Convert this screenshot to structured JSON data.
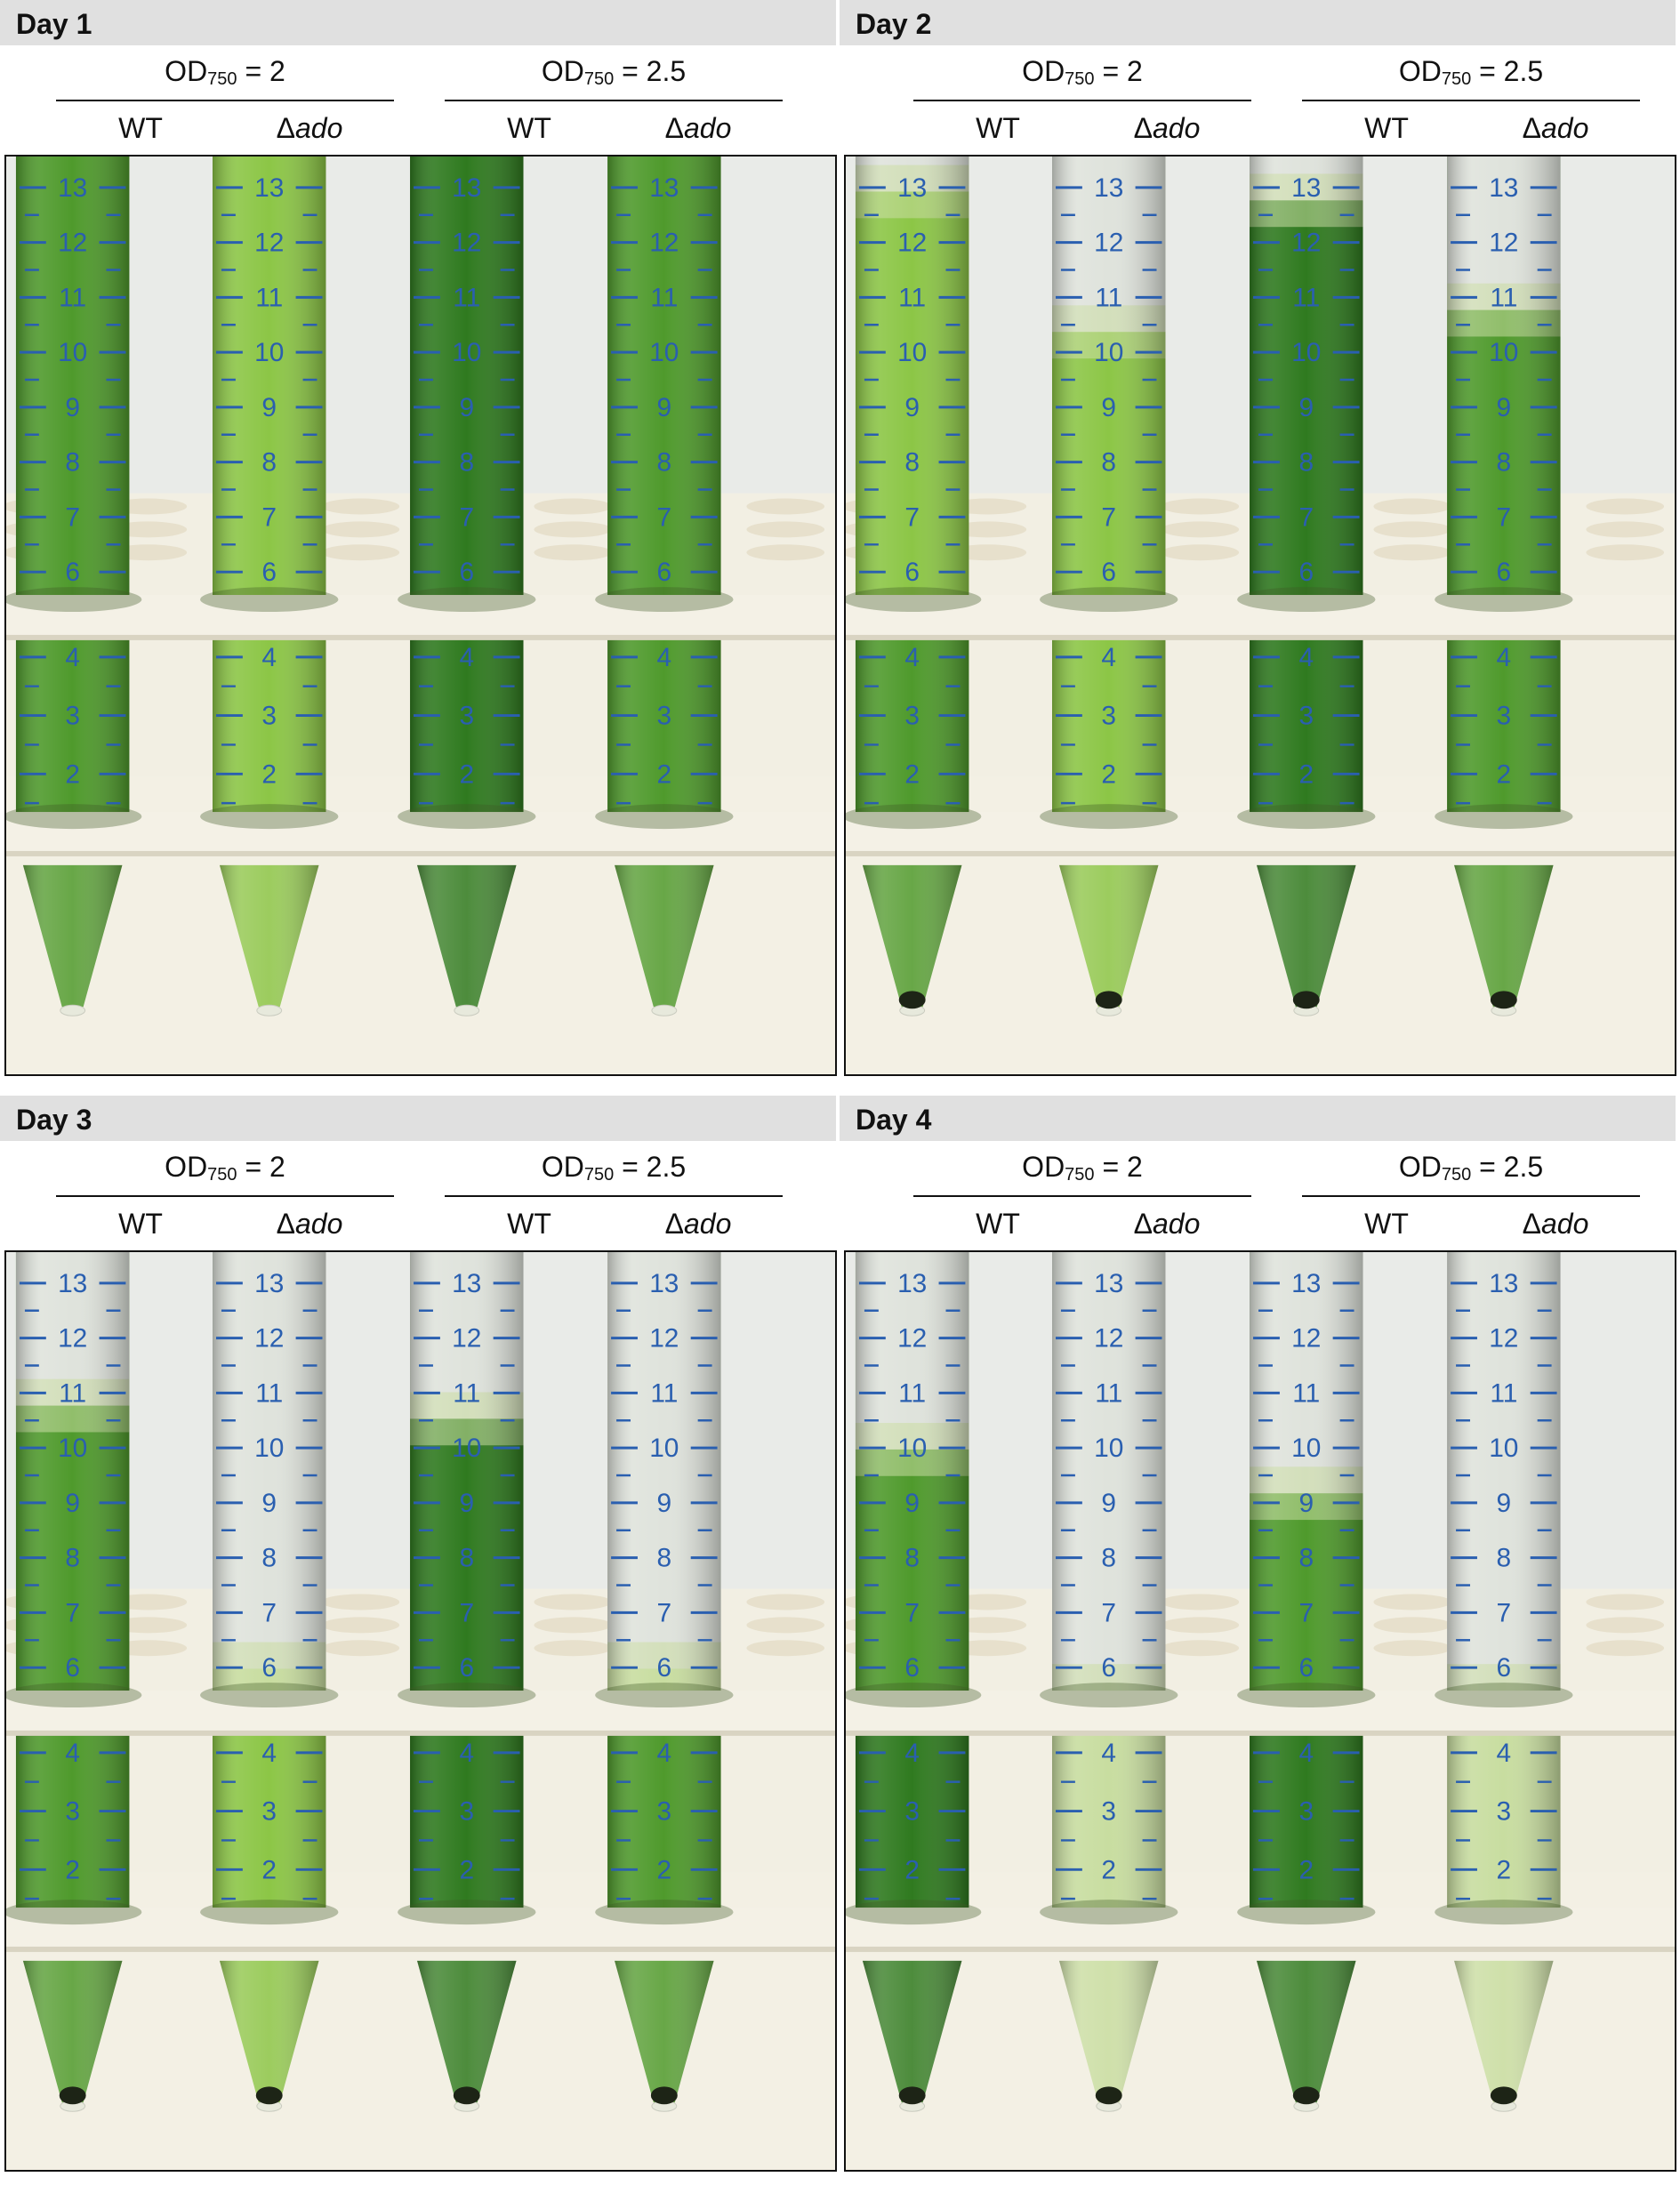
{
  "panels": [
    {
      "day": "Day 1",
      "groups": [
        {
          "od_base": "OD",
          "od_sub": "750",
          "od_value": " = 2",
          "cond_wt": "WT",
          "cond_delta": "Δ",
          "cond_mut": "ado"
        },
        {
          "od_base": "OD",
          "od_sub": "750",
          "od_value": " = 2.5",
          "cond_wt": "WT",
          "cond_delta": "Δ",
          "cond_mut": "ado"
        }
      ]
    },
    {
      "day": "Day 2",
      "groups": [
        {
          "od_base": "OD",
          "od_sub": "750",
          "od_value": " = 2",
          "cond_wt": "WT",
          "cond_delta": "Δ",
          "cond_mut": "ado"
        },
        {
          "od_base": "OD",
          "od_sub": "750",
          "od_value": " = 2.5",
          "cond_wt": "WT",
          "cond_delta": "Δ",
          "cond_mut": "ado"
        }
      ]
    },
    {
      "day": "Day 3",
      "groups": [
        {
          "od_base": "OD",
          "od_sub": "750",
          "od_value": " = 2",
          "cond_wt": "WT",
          "cond_delta": "Δ",
          "cond_mut": "ado"
        },
        {
          "od_base": "OD",
          "od_sub": "750",
          "od_value": " = 2.5",
          "cond_wt": "WT",
          "cond_delta": "Δ",
          "cond_mut": "ado"
        }
      ]
    },
    {
      "day": "Day 4",
      "groups": [
        {
          "od_base": "OD",
          "od_sub": "750",
          "od_value": " = 2",
          "cond_wt": "WT",
          "cond_delta": "Δ",
          "cond_mut": "ado"
        },
        {
          "od_base": "OD",
          "od_sub": "750",
          "od_value": " = 2.5",
          "cond_wt": "WT",
          "cond_delta": "Δ",
          "cond_mut": "ado"
        }
      ]
    }
  ],
  "tube_scale_labels": [
    "13",
    "12",
    "11",
    "10",
    "9",
    "8",
    "7",
    "6",
    "4",
    "3",
    "2"
  ],
  "colors": {
    "dark_green": "#2f7a1f",
    "mid_green": "#4f9a2c",
    "light_green": "#8cc646",
    "pale_green": "#c8dda0",
    "clear": "#dfe3dc",
    "rack": "#f4f1e6",
    "scale_blue": "#2a5fb0",
    "pellet": "#1d2416"
  }
}
